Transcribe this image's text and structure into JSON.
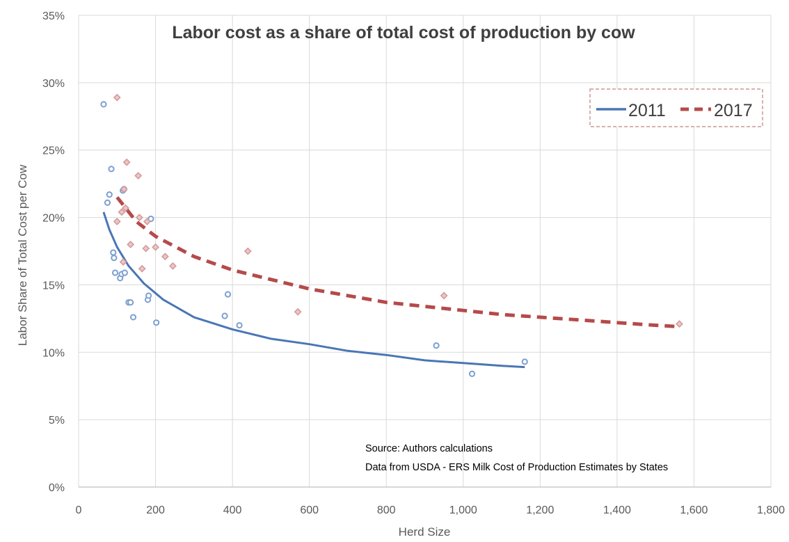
{
  "chart_data": {
    "type": "scatter",
    "title": "Labor cost as a share of total cost of production by cow",
    "xlabel": "Herd Size",
    "ylabel": "Labor Share of Total Cost per Cow",
    "xlim": [
      0,
      1800
    ],
    "ylim": [
      0,
      0.35
    ],
    "x_ticks": [
      0,
      200,
      400,
      600,
      800,
      1000,
      1200,
      1400,
      1600,
      1800
    ],
    "x_tick_labels": [
      "0",
      "200",
      "400",
      "600",
      "800",
      "1,000",
      "1,200",
      "1,400",
      "1,600",
      "1,800"
    ],
    "y_ticks": [
      0,
      0.05,
      0.1,
      0.15,
      0.2,
      0.25,
      0.3,
      0.35
    ],
    "y_tick_labels": [
      "0%",
      "5%",
      "10%",
      "15%",
      "20%",
      "25%",
      "30%",
      "35%"
    ],
    "grid": true,
    "legend_position": "top-right",
    "annotation_lines": [
      "Source: Authors calculations",
      "Data from USDA - ERS  Milk Cost of Production Estimates by States"
    ],
    "series": [
      {
        "name": "2011",
        "color": "#4a76b5",
        "marker": "circle",
        "trend_style": "solid",
        "points": [
          [
            65,
            0.284
          ],
          [
            75,
            0.211
          ],
          [
            80,
            0.217
          ],
          [
            85,
            0.236
          ],
          [
            90,
            0.174
          ],
          [
            92,
            0.17
          ],
          [
            95,
            0.159
          ],
          [
            108,
            0.155
          ],
          [
            112,
            0.158
          ],
          [
            115,
            0.22
          ],
          [
            118,
            0.221
          ],
          [
            120,
            0.159
          ],
          [
            130,
            0.137
          ],
          [
            135,
            0.137
          ],
          [
            142,
            0.126
          ],
          [
            180,
            0.139
          ],
          [
            182,
            0.142
          ],
          [
            188,
            0.199
          ],
          [
            202,
            0.122
          ],
          [
            380,
            0.127
          ],
          [
            388,
            0.143
          ],
          [
            418,
            0.12
          ],
          [
            930,
            0.105
          ],
          [
            1023,
            0.084
          ],
          [
            1160,
            0.093
          ]
        ],
        "trend": [
          [
            65,
            0.204
          ],
          [
            80,
            0.191
          ],
          [
            100,
            0.178
          ],
          [
            130,
            0.164
          ],
          [
            170,
            0.151
          ],
          [
            220,
            0.139
          ],
          [
            300,
            0.126
          ],
          [
            400,
            0.117
          ],
          [
            500,
            0.11
          ],
          [
            600,
            0.106
          ],
          [
            700,
            0.101
          ],
          [
            800,
            0.098
          ],
          [
            900,
            0.094
          ],
          [
            1000,
            0.092
          ],
          [
            1100,
            0.09
          ],
          [
            1160,
            0.089
          ]
        ]
      },
      {
        "name": "2017",
        "color": "#b54a4a",
        "marker": "diamond",
        "trend_style": "dashed",
        "points": [
          [
            100,
            0.289
          ],
          [
            100,
            0.197
          ],
          [
            112,
            0.204
          ],
          [
            116,
            0.167
          ],
          [
            118,
            0.221
          ],
          [
            122,
            0.207
          ],
          [
            125,
            0.241
          ],
          [
            135,
            0.18
          ],
          [
            155,
            0.231
          ],
          [
            158,
            0.2
          ],
          [
            165,
            0.162
          ],
          [
            175,
            0.177
          ],
          [
            178,
            0.197
          ],
          [
            200,
            0.178
          ],
          [
            225,
            0.171
          ],
          [
            245,
            0.164
          ],
          [
            440,
            0.175
          ],
          [
            570,
            0.13
          ],
          [
            950,
            0.142
          ],
          [
            1562,
            0.121
          ]
        ],
        "trend": [
          [
            100,
            0.215
          ],
          [
            150,
            0.197
          ],
          [
            200,
            0.186
          ],
          [
            300,
            0.171
          ],
          [
            400,
            0.161
          ],
          [
            500,
            0.154
          ],
          [
            600,
            0.147
          ],
          [
            700,
            0.142
          ],
          [
            800,
            0.137
          ],
          [
            900,
            0.134
          ],
          [
            1000,
            0.131
          ],
          [
            1100,
            0.128
          ],
          [
            1200,
            0.126
          ],
          [
            1300,
            0.124
          ],
          [
            1400,
            0.122
          ],
          [
            1500,
            0.12
          ],
          [
            1562,
            0.119
          ]
        ]
      }
    ]
  }
}
